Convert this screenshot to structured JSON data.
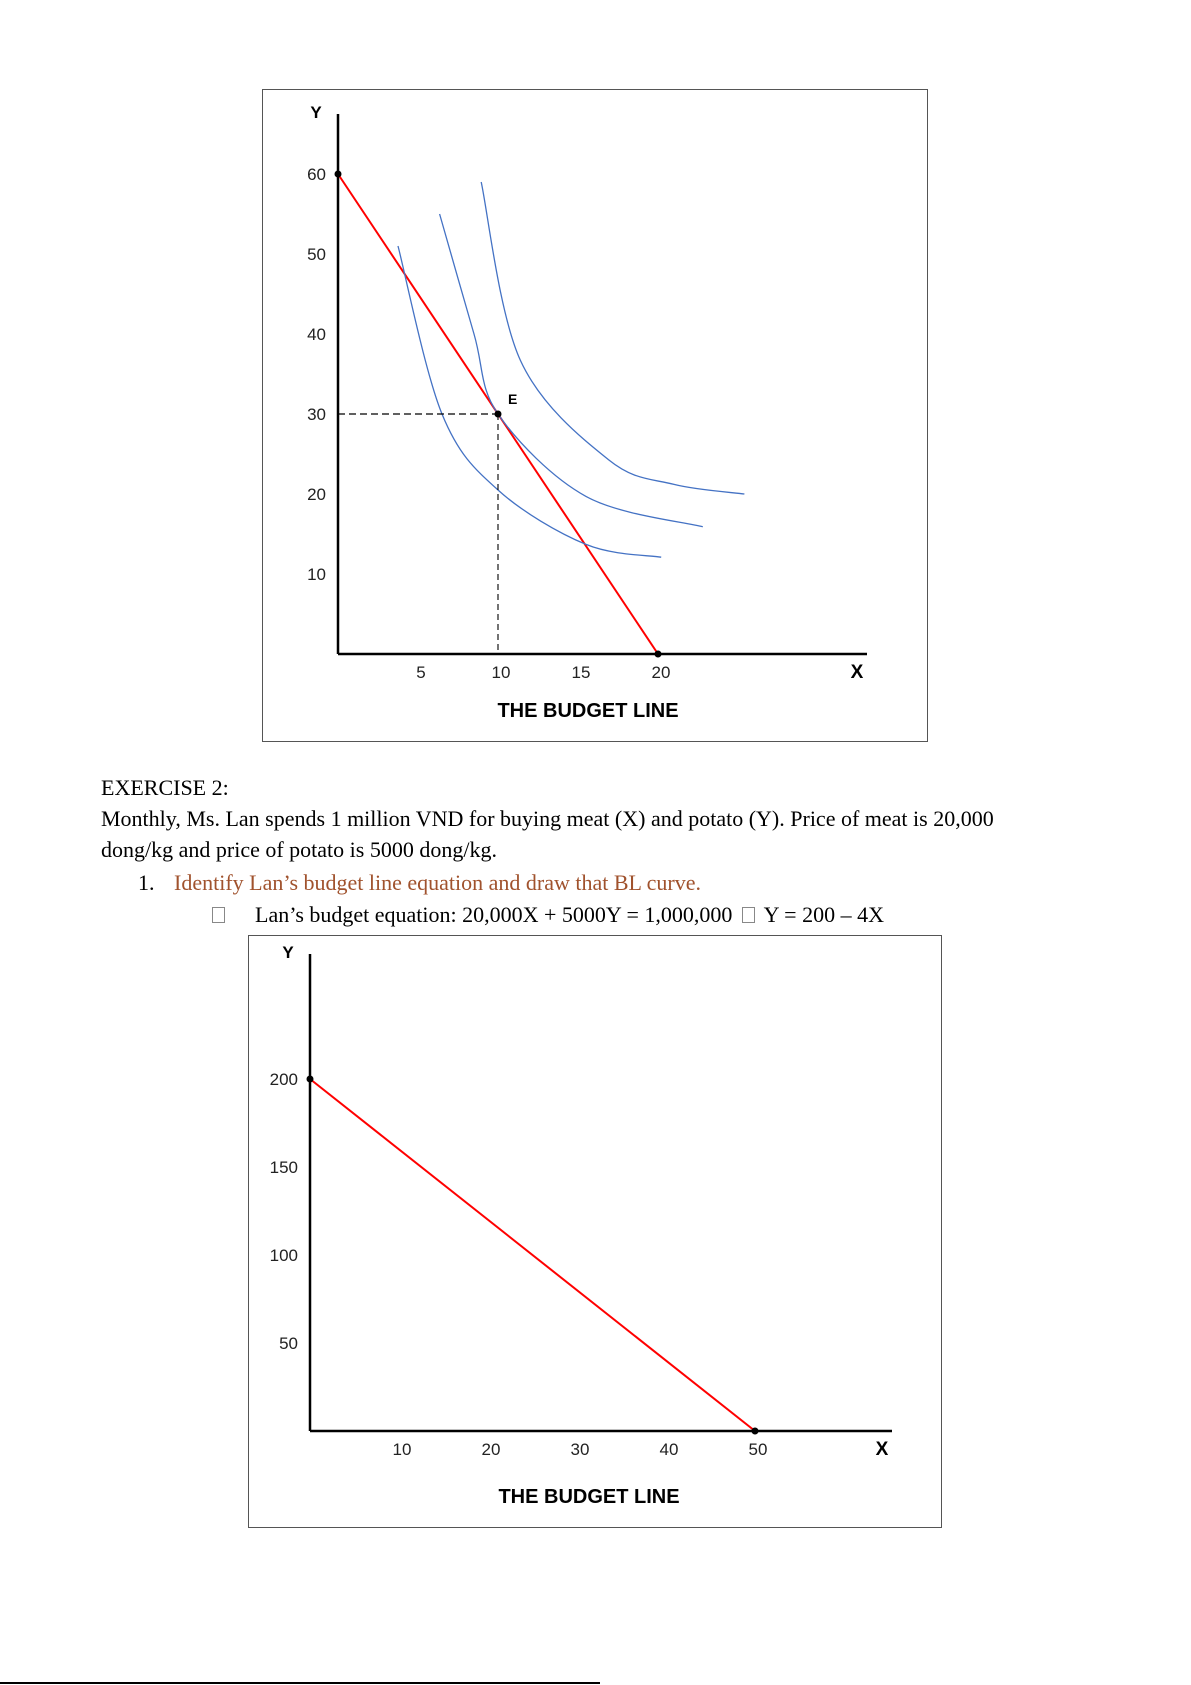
{
  "document": {
    "exercise_heading": "EXERCISE 2:",
    "paragraph_line1": "Monthly, Ms. Lan spends 1 million VND for buying meat (X) and potato (Y). Price of meat is 20,000",
    "paragraph_line2": "dong/kg and price of potato is 5000 dong/kg.",
    "question_number": "1.",
    "question_text": "Identify Lan’s budget line equation and draw that BL curve.",
    "bullet_symbol": "",
    "answer_part1": "Lan’s budget equation: 20,000X + 5000Y = 1,000,000",
    "answer_arrow": "",
    "answer_part2": "Y = 200 – 4X"
  },
  "colors": {
    "budget_line": "#ff0000",
    "indifference": "#4472c4",
    "question": "#a0522d"
  },
  "chart_data": [
    {
      "type": "line",
      "title": "THE BUDGET LINE",
      "xlabel": "X",
      "ylabel": "Y",
      "xlim": [
        0,
        30
      ],
      "ylim": [
        0,
        68
      ],
      "xticks": [
        "5",
        "10",
        "15",
        "20"
      ],
      "xtick_values": [
        5,
        10,
        15,
        20
      ],
      "yticks": [
        "10",
        "20",
        "30",
        "40",
        "50",
        "60"
      ],
      "ytick_values": [
        10,
        20,
        30,
        40,
        50,
        60
      ],
      "point_label": "E",
      "point": [
        10,
        30
      ],
      "series": [
        {
          "name": "budget line",
          "points": [
            [
              0,
              60
            ],
            [
              20,
              0
            ]
          ]
        },
        {
          "name": "IC1",
          "points": [
            [
              3.75,
              51
            ],
            [
              6.5,
              30
            ],
            [
              10,
              20.5
            ],
            [
              15.5,
              13.7
            ],
            [
              20.2,
              12.1
            ]
          ]
        },
        {
          "name": "IC2",
          "points": [
            [
              6.35,
              55
            ],
            [
              8.5,
              40
            ],
            [
              10,
              30
            ],
            [
              15.5,
              19.7
            ],
            [
              22.8,
              15.9
            ]
          ]
        },
        {
          "name": "IC3",
          "points": [
            [
              8.95,
              59
            ],
            [
              11.4,
              36.7
            ],
            [
              16.9,
              24.3
            ],
            [
              21,
              21.2
            ],
            [
              25.4,
              20
            ]
          ]
        }
      ]
    },
    {
      "type": "line",
      "title": "THE BUDGET LINE",
      "xlabel": "X",
      "ylabel": "Y",
      "xlim": [
        0,
        65
      ],
      "ylim": [
        0,
        245
      ],
      "xticks": [
        "10",
        "20",
        "30",
        "40",
        "50"
      ],
      "xtick_values": [
        10,
        20,
        30,
        40,
        50
      ],
      "yticks": [
        "50",
        "100",
        "150",
        "200"
      ],
      "ytick_values": [
        50,
        100,
        150,
        200
      ],
      "series": [
        {
          "name": "budget line",
          "points": [
            [
              0,
              200
            ],
            [
              50,
              0
            ]
          ]
        }
      ]
    }
  ]
}
